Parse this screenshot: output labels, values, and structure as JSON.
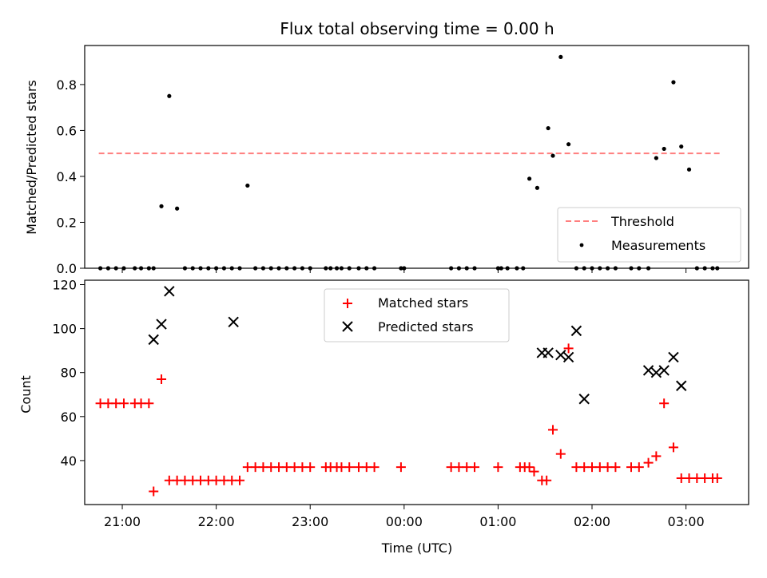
{
  "title": "Flux total observing time = 0.00 h",
  "colors": {
    "threshold": "#ff7f7f",
    "measurement": "#000000",
    "matched": "#ff0000",
    "predicted": "#000000"
  },
  "chart_data": [
    {
      "type": "scatter",
      "ylabel": "Matched/Predicted stars",
      "ylim": [
        0,
        0.97
      ],
      "yticks": [
        0.0,
        0.2,
        0.4,
        0.6,
        0.8
      ],
      "ytick_labels": [
        "0.0",
        "0.2",
        "0.4",
        "0.6",
        "0.8"
      ],
      "legend_position": "lower-right",
      "threshold": {
        "name": "Threshold",
        "value": 0.5,
        "x_range": [
          "20:45",
          "03:22"
        ]
      },
      "series": [
        {
          "name": "Measurements",
          "x": [
            "20:46",
            "20:51",
            "20:56",
            "21:01",
            "21:08",
            "21:12",
            "21:17",
            "21:20",
            "21:25",
            "21:30",
            "21:35",
            "21:40",
            "21:45",
            "21:50",
            "21:55",
            "22:00",
            "22:05",
            "22:10",
            "22:15",
            "22:20",
            "22:25",
            "22:30",
            "22:35",
            "22:40",
            "22:45",
            "22:50",
            "22:55",
            "23:00",
            "23:10",
            "23:13",
            "23:17",
            "23:20",
            "23:25",
            "23:31",
            "23:36",
            "23:41",
            "23:58",
            "00:00",
            "00:30",
            "00:35",
            "00:40",
            "00:45",
            "01:00",
            "01:02",
            "01:06",
            "01:12",
            "01:16",
            "01:20",
            "01:25",
            "01:32",
            "01:35",
            "01:40",
            "01:45",
            "01:50",
            "01:55",
            "02:00",
            "02:05",
            "02:10",
            "02:15",
            "02:25",
            "02:30",
            "02:36",
            "02:41",
            "02:46",
            "02:52",
            "02:57",
            "03:02",
            "03:07",
            "03:12",
            "03:17",
            "03:20"
          ],
          "y": [
            0,
            0,
            0,
            0,
            0,
            0,
            0,
            0,
            0.27,
            0.75,
            0.26,
            0,
            0,
            0,
            0,
            0,
            0,
            0,
            0,
            0.36,
            0,
            0,
            0,
            0,
            0,
            0,
            0,
            0,
            0,
            0,
            0,
            0,
            0,
            0,
            0,
            0,
            0,
            0,
            0,
            0,
            0,
            0,
            0,
            0,
            0,
            0,
            0,
            0.39,
            0.35,
            0.61,
            0.49,
            0.92,
            0.54,
            0,
            0,
            0,
            0,
            0,
            0,
            0,
            0,
            0,
            0.48,
            0.52,
            0.81,
            0.53,
            0.43,
            0,
            0,
            0,
            0
          ]
        }
      ]
    },
    {
      "type": "scatter",
      "xlabel": "Time (UTC)",
      "ylabel": "Count",
      "ylim": [
        20,
        122
      ],
      "yticks": [
        40,
        60,
        80,
        100,
        120
      ],
      "ytick_labels": [
        "40",
        "60",
        "80",
        "100",
        "120"
      ],
      "xticks": [
        "21:00",
        "22:00",
        "23:00",
        "00:00",
        "01:00",
        "02:00",
        "03:00"
      ],
      "xtick_labels": [
        "21:00",
        "22:00",
        "23:00",
        "00:00",
        "01:00",
        "02:00",
        "03:00"
      ],
      "legend_position": "upper-center",
      "series": [
        {
          "name": "Matched stars",
          "marker": "plus",
          "x": [
            "20:46",
            "20:51",
            "20:56",
            "21:01",
            "21:08",
            "21:12",
            "21:17",
            "21:20",
            "21:25",
            "21:30",
            "21:35",
            "21:40",
            "21:45",
            "21:50",
            "21:55",
            "22:00",
            "22:05",
            "22:10",
            "22:15",
            "22:20",
            "22:25",
            "22:30",
            "22:35",
            "22:40",
            "22:45",
            "22:50",
            "22:55",
            "23:00",
            "23:10",
            "23:13",
            "23:17",
            "23:20",
            "23:25",
            "23:31",
            "23:36",
            "23:41",
            "23:58",
            "00:30",
            "00:35",
            "00:40",
            "00:45",
            "01:00",
            "01:14",
            "01:17",
            "01:20",
            "01:23",
            "01:28",
            "01:31",
            "01:35",
            "01:40",
            "01:45",
            "01:50",
            "01:55",
            "02:00",
            "02:05",
            "02:10",
            "02:15",
            "02:25",
            "02:30",
            "02:36",
            "02:41",
            "02:46",
            "02:52",
            "02:57",
            "03:02",
            "03:07",
            "03:12",
            "03:17",
            "03:20"
          ],
          "y": [
            66,
            66,
            66,
            66,
            66,
            66,
            66,
            26,
            77,
            31,
            31,
            31,
            31,
            31,
            31,
            31,
            31,
            31,
            31,
            37,
            37,
            37,
            37,
            37,
            37,
            37,
            37,
            37,
            37,
            37,
            37,
            37,
            37,
            37,
            37,
            37,
            37,
            37,
            37,
            37,
            37,
            37,
            37,
            37,
            37,
            35,
            31,
            31,
            54,
            43,
            91,
            37,
            37,
            37,
            37,
            37,
            37,
            37,
            37,
            39,
            42,
            66,
            46,
            32,
            32,
            32,
            32,
            32,
            32
          ]
        },
        {
          "name": "Predicted stars",
          "marker": "x",
          "x": [
            "21:20",
            "21:25",
            "21:30",
            "22:11",
            "01:28",
            "01:32",
            "01:40",
            "01:45",
            "01:50",
            "01:55",
            "02:36",
            "02:41",
            "02:46",
            "02:52",
            "02:57"
          ],
          "y": [
            95,
            102,
            117,
            103,
            89,
            89,
            88,
            87,
            99,
            68,
            81,
            80,
            81,
            87,
            74
          ]
        }
      ]
    }
  ]
}
